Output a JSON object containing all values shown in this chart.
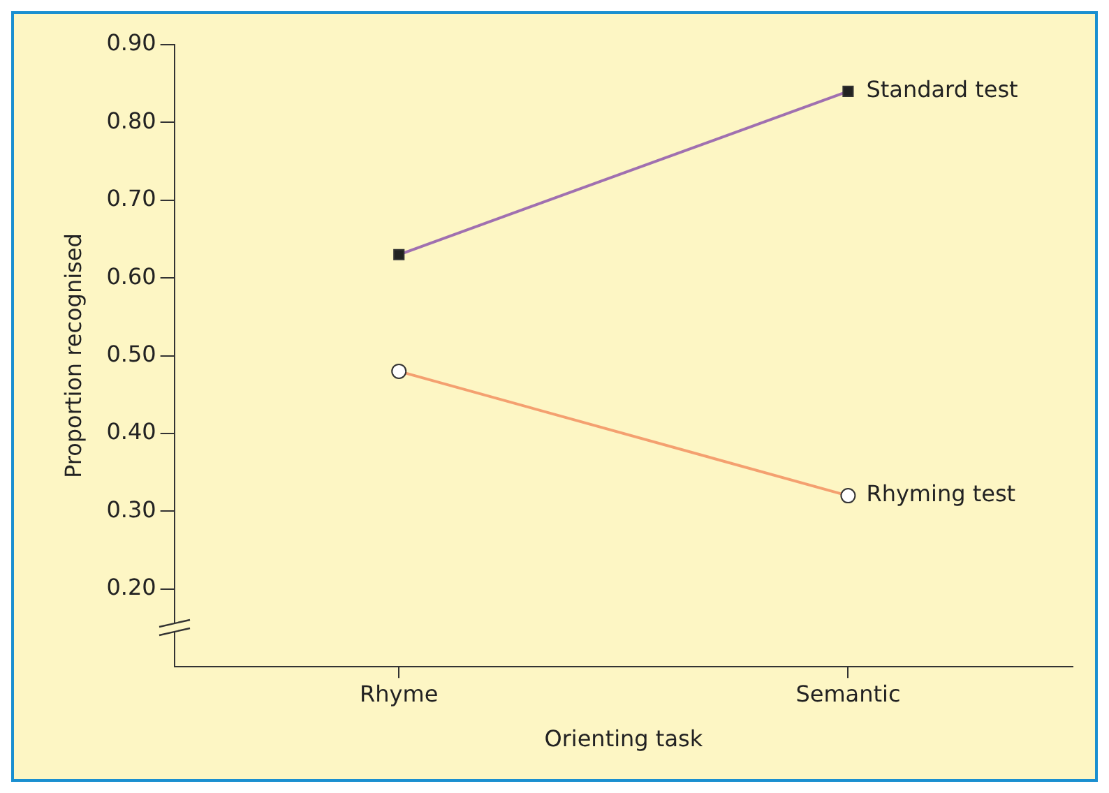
{
  "chart_data": {
    "type": "line",
    "xlabel": "Orienting task",
    "ylabel": "Proportion recognised",
    "categories": [
      "Rhyme",
      "Semantic"
    ],
    "series": [
      {
        "name": "Standard test",
        "color": "#a070b0",
        "marker": "square",
        "values": [
          0.63,
          0.84
        ]
      },
      {
        "name": "Rhyming test",
        "color": "#f4a070",
        "marker": "circle",
        "values": [
          0.48,
          0.32
        ]
      }
    ],
    "ylim": [
      0.1,
      0.9
    ],
    "yticks": [
      {
        "value": 0.2,
        "label": "0.20"
      },
      {
        "value": 0.3,
        "label": "0.30"
      },
      {
        "value": 0.4,
        "label": "0.40"
      },
      {
        "value": 0.5,
        "label": "0.50"
      },
      {
        "value": 0.6,
        "label": "0.60"
      },
      {
        "value": 0.7,
        "label": "0.70"
      },
      {
        "value": 0.8,
        "label": "0.80"
      },
      {
        "value": 0.9,
        "label": "0.90"
      }
    ],
    "grid": false,
    "legend": false
  }
}
